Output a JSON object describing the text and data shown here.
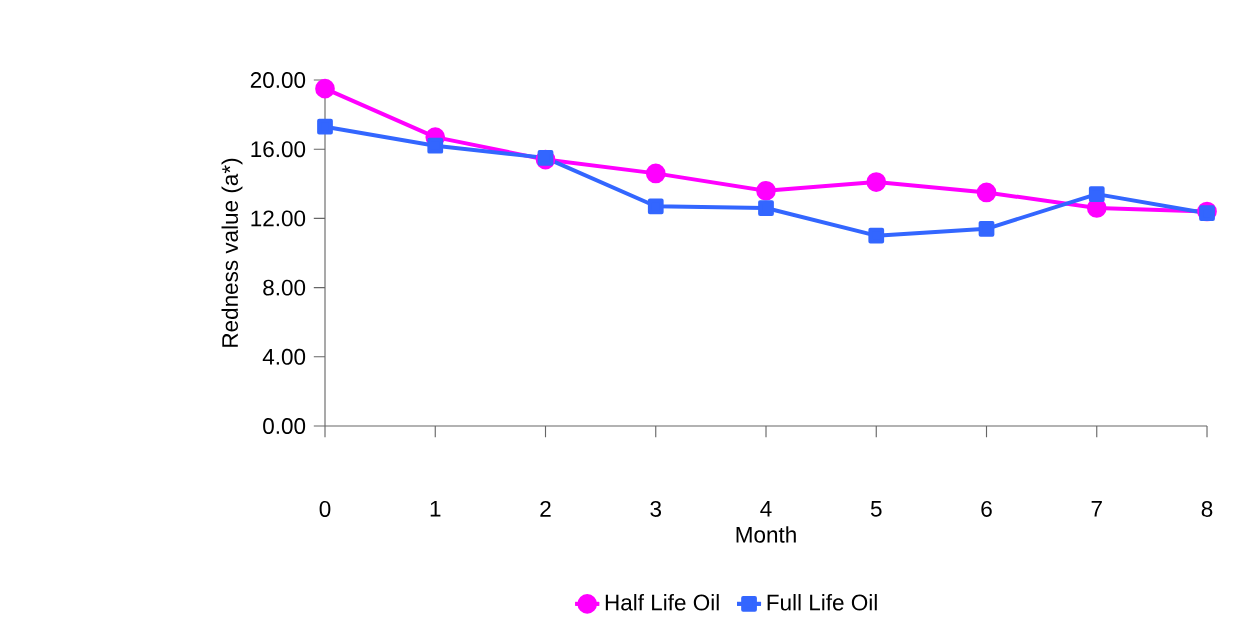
{
  "chart_data": {
    "type": "line",
    "xlabel": "Month",
    "ylabel": "Redness value (a*)",
    "x": [
      0,
      1,
      2,
      3,
      4,
      5,
      6,
      7,
      8
    ],
    "series": [
      {
        "name": "Half Life Oil",
        "color": "#ff00ff",
        "marker": "circle",
        "values": [
          19.5,
          16.7,
          15.4,
          14.6,
          13.6,
          14.1,
          13.5,
          12.6,
          12.4
        ]
      },
      {
        "name": "Full Life Oil",
        "color": "#3366ff",
        "marker": "square",
        "values": [
          17.3,
          16.2,
          15.5,
          12.7,
          12.6,
          11.0,
          11.4,
          13.4,
          12.3
        ]
      }
    ],
    "xlim": [
      0,
      8
    ],
    "xticks": [
      0,
      1,
      2,
      3,
      4,
      5,
      6,
      7,
      8
    ],
    "ylim": [
      0,
      20
    ],
    "yticks": [
      {
        "value": 0,
        "label": "0.00"
      },
      {
        "value": 4,
        "label": "4.00"
      },
      {
        "value": 8,
        "label": "8.00"
      },
      {
        "value": 12,
        "label": "12.00"
      },
      {
        "value": 16,
        "label": "16.00"
      },
      {
        "value": 20,
        "label": "20.00"
      }
    ],
    "grid": false,
    "legend": "bottom",
    "line_style": "solid"
  }
}
